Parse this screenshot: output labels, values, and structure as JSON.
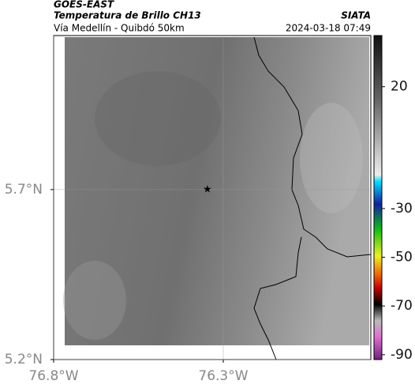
{
  "header": {
    "source": "GOES-EAST",
    "title": "Temperatura de Brillo CH13",
    "subtitle": "Vía Medellín - Quibdó 50km",
    "org": "SIATA",
    "datetime": "2024-03-18 07:49"
  },
  "map": {
    "xlim": [
      -76.8,
      -75.865
    ],
    "ylim": [
      5.2,
      6.153
    ],
    "xticks": [
      {
        "value": -76.8,
        "label": "76.8°W"
      },
      {
        "value": -76.3,
        "label": "76.3°W"
      }
    ],
    "yticks": [
      {
        "value": 5.7,
        "label": "5.7°N"
      },
      {
        "value": 5.2,
        "label": "5.2°N"
      }
    ],
    "marker": {
      "lon": -76.347,
      "lat": 5.7
    }
  },
  "colorbar": {
    "lim": [
      -92,
      41
    ],
    "ticks": [
      20,
      -30,
      -50,
      -70,
      -90
    ]
  }
}
